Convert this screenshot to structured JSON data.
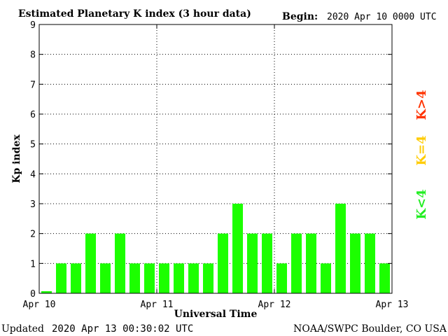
{
  "header": {
    "title": "Estimated Planetary K index (3 hour data)",
    "begin_label": "Begin:",
    "begin_value": "2020 Apr 10 0000 UTC"
  },
  "footer": {
    "updated_label": "Updated",
    "updated_value": "2020 Apr 13 00:30:02 UTC",
    "source": "NOAA/SWPC Boulder, CO USA"
  },
  "legend": [
    {
      "label": "K>4",
      "color": "#ff3300"
    },
    {
      "label": "K=4",
      "color": "#ffcc00"
    },
    {
      "label": "K<4",
      "color": "#22ee22"
    }
  ],
  "colors": {
    "bar": "#1cff00",
    "background": "#ffffff",
    "axis": "#000000",
    "grid": "#000000"
  },
  "chart_data": {
    "type": "bar",
    "title": "Estimated Planetary K index (3 hour data)",
    "xlabel": "Universal Time",
    "ylabel": "Kp index",
    "ylim": [
      0,
      9
    ],
    "yticks": [
      "0",
      "1",
      "2",
      "3",
      "4",
      "5",
      "6",
      "7",
      "8",
      "9"
    ],
    "xticks": [
      "Apr 10",
      "Apr 11",
      "Apr 12",
      "Apr 13"
    ],
    "bar_interval_hours": 3,
    "grid": true,
    "values": [
      0.07,
      1,
      1,
      2,
      1,
      2,
      1,
      1,
      1,
      1,
      1,
      1,
      2,
      3,
      2,
      2,
      1,
      2,
      2,
      1,
      3,
      2,
      2,
      1
    ]
  }
}
